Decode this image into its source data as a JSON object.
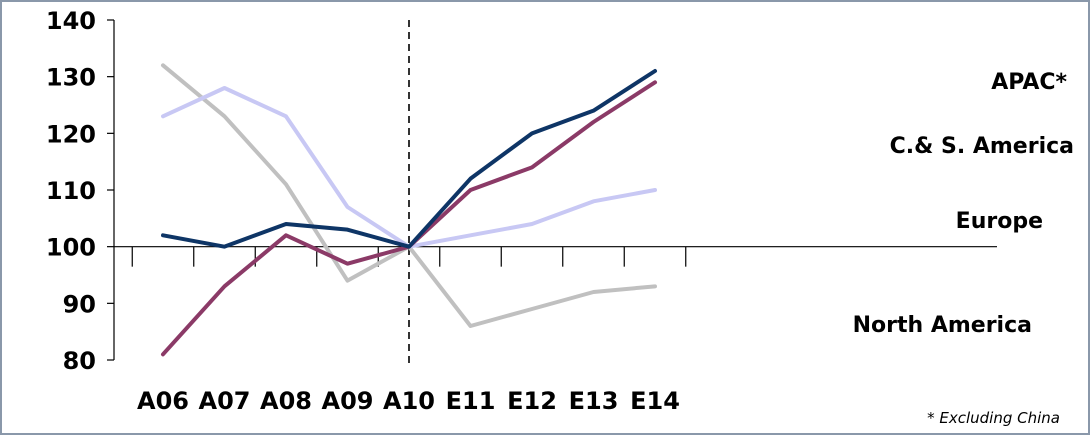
{
  "chart_data": {
    "type": "line",
    "categories": [
      "A06",
      "A07",
      "A08",
      "A09",
      "A10",
      "E11",
      "E12",
      "E13",
      "E14"
    ],
    "yticks": [
      80,
      90,
      100,
      110,
      120,
      130,
      140
    ],
    "ylim": [
      80,
      140
    ],
    "x_axis_crosses_at": 100,
    "divider_after_category": "A10",
    "grid": false,
    "series": [
      {
        "name": "APAC*",
        "color": "#0e3566",
        "values": [
          102,
          100,
          104,
          103,
          100,
          112,
          120,
          124,
          131
        ]
      },
      {
        "name": "C.& S. America",
        "color": "#8b3a67",
        "values": [
          81,
          93,
          102,
          97,
          100,
          110,
          114,
          122,
          129
        ]
      },
      {
        "name": "Europe",
        "color": "#c8c8f4",
        "values": [
          123,
          128,
          123,
          107,
          100,
          102,
          104,
          108,
          110
        ]
      },
      {
        "name": "North America",
        "color": "#c0c0c0",
        "values": [
          132,
          123,
          111,
          94,
          100,
          86,
          89,
          92,
          93
        ]
      }
    ],
    "footnote": "* Excluding China"
  }
}
